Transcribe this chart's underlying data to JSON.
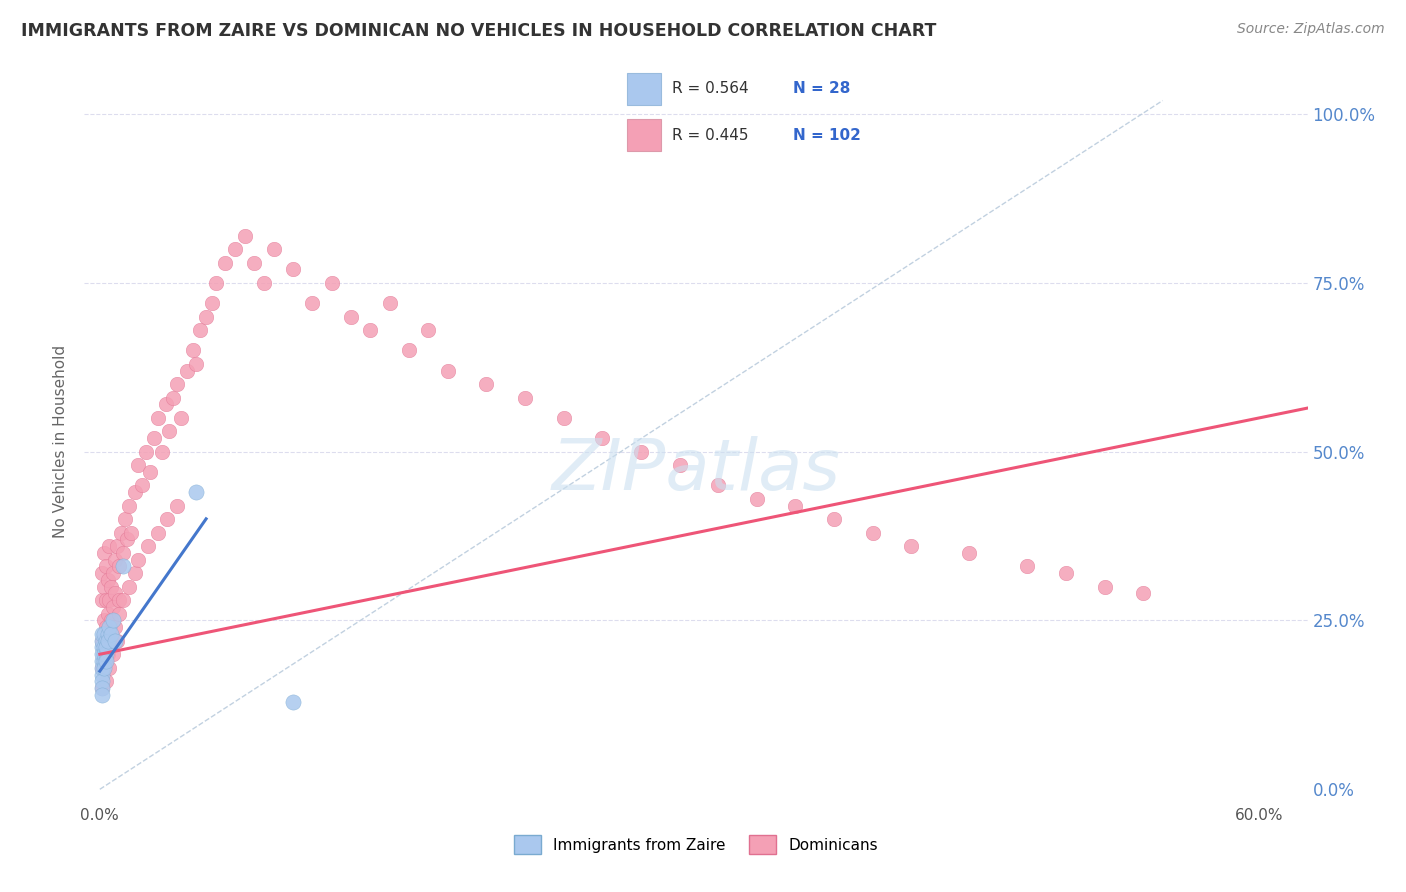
{
  "title": "IMMIGRANTS FROM ZAIRE VS DOMINICAN NO VEHICLES IN HOUSEHOLD CORRELATION CHART",
  "source": "Source: ZipAtlas.com",
  "ylabel": "No Vehicles in Household",
  "zaire_R": 0.564,
  "zaire_N": 28,
  "dominican_R": 0.445,
  "dominican_N": 102,
  "zaire_color": "#aac8ee",
  "dominican_color": "#f4a0b5",
  "zaire_edge_color": "#7aaad0",
  "dominican_edge_color": "#e07090",
  "zaire_line_color": "#4477cc",
  "dominican_line_color": "#ee5577",
  "diag_line_color": "#bbccdd",
  "background_color": "#ffffff",
  "grid_color": "#ddddee",
  "title_color": "#333333",
  "source_color": "#888888",
  "legend_text_color": "#3366cc",
  "right_tick_color": "#5588cc",
  "watermark_color": "#cce0f0",
  "zaire_points_x": [
    0.001,
    0.001,
    0.001,
    0.001,
    0.001,
    0.001,
    0.001,
    0.001,
    0.001,
    0.001,
    0.002,
    0.002,
    0.002,
    0.002,
    0.002,
    0.003,
    0.003,
    0.003,
    0.003,
    0.004,
    0.004,
    0.005,
    0.006,
    0.007,
    0.008,
    0.012,
    0.05,
    0.1
  ],
  "zaire_points_y": [
    0.19,
    0.21,
    0.17,
    0.22,
    0.18,
    0.2,
    0.16,
    0.23,
    0.15,
    0.14,
    0.21,
    0.23,
    0.19,
    0.2,
    0.18,
    0.22,
    0.2,
    0.21,
    0.19,
    0.23,
    0.22,
    0.24,
    0.23,
    0.25,
    0.22,
    0.33,
    0.44,
    0.13
  ],
  "dominican_points_x": [
    0.001,
    0.001,
    0.001,
    0.001,
    0.002,
    0.002,
    0.002,
    0.002,
    0.003,
    0.003,
    0.003,
    0.003,
    0.004,
    0.004,
    0.005,
    0.005,
    0.005,
    0.006,
    0.006,
    0.007,
    0.007,
    0.008,
    0.008,
    0.009,
    0.01,
    0.01,
    0.011,
    0.012,
    0.013,
    0.014,
    0.015,
    0.016,
    0.018,
    0.02,
    0.022,
    0.024,
    0.026,
    0.028,
    0.03,
    0.032,
    0.034,
    0.036,
    0.038,
    0.04,
    0.042,
    0.045,
    0.048,
    0.05,
    0.052,
    0.055,
    0.058,
    0.06,
    0.065,
    0.07,
    0.075,
    0.08,
    0.085,
    0.09,
    0.1,
    0.11,
    0.12,
    0.13,
    0.14,
    0.15,
    0.16,
    0.17,
    0.18,
    0.2,
    0.22,
    0.24,
    0.26,
    0.28,
    0.3,
    0.32,
    0.34,
    0.36,
    0.38,
    0.4,
    0.42,
    0.45,
    0.48,
    0.5,
    0.52,
    0.54,
    0.001,
    0.002,
    0.003,
    0.004,
    0.005,
    0.006,
    0.007,
    0.008,
    0.009,
    0.01,
    0.012,
    0.015,
    0.018,
    0.02,
    0.025,
    0.03,
    0.035,
    0.04
  ],
  "dominican_points_y": [
    0.22,
    0.28,
    0.32,
    0.18,
    0.25,
    0.3,
    0.2,
    0.35,
    0.24,
    0.28,
    0.19,
    0.33,
    0.26,
    0.31,
    0.22,
    0.36,
    0.28,
    0.3,
    0.25,
    0.32,
    0.27,
    0.34,
    0.29,
    0.36,
    0.33,
    0.28,
    0.38,
    0.35,
    0.4,
    0.37,
    0.42,
    0.38,
    0.44,
    0.48,
    0.45,
    0.5,
    0.47,
    0.52,
    0.55,
    0.5,
    0.57,
    0.53,
    0.58,
    0.6,
    0.55,
    0.62,
    0.65,
    0.63,
    0.68,
    0.7,
    0.72,
    0.75,
    0.78,
    0.8,
    0.82,
    0.78,
    0.75,
    0.8,
    0.77,
    0.72,
    0.75,
    0.7,
    0.68,
    0.72,
    0.65,
    0.68,
    0.62,
    0.6,
    0.58,
    0.55,
    0.52,
    0.5,
    0.48,
    0.45,
    0.43,
    0.42,
    0.4,
    0.38,
    0.36,
    0.35,
    0.33,
    0.32,
    0.3,
    0.29,
    0.15,
    0.18,
    0.16,
    0.2,
    0.18,
    0.22,
    0.2,
    0.24,
    0.22,
    0.26,
    0.28,
    0.3,
    0.32,
    0.34,
    0.36,
    0.38,
    0.4,
    0.42
  ]
}
